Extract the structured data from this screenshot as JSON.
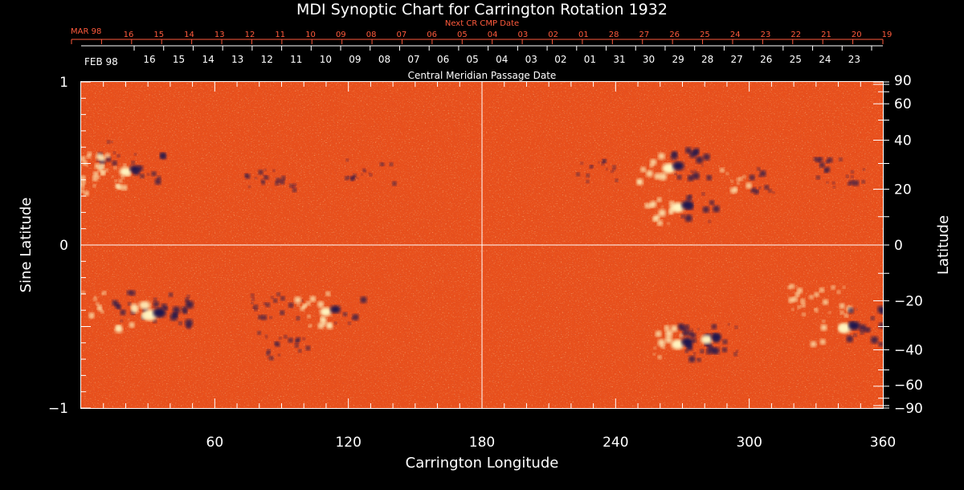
{
  "chart_data": {
    "type": "heatmap",
    "title": "MDI Synoptic Chart for Carrington Rotation 1932",
    "xlabel": "Carrington Longitude",
    "ylabel_left": "Sine Latitude",
    "ylabel_right": "Latitude",
    "top_label_red": "Next CR CMP Date",
    "top_label_white": "Central Meridian Passage Date",
    "month_red": "MAR 98",
    "month_white": "FEB 98",
    "xlim": [
      0,
      360
    ],
    "ylim": [
      -1,
      1
    ],
    "x_ticks": [
      60,
      120,
      180,
      240,
      300,
      360
    ],
    "x_minor_step": 10,
    "y_ticks_left": [
      {
        "value": 1,
        "label": "1"
      },
      {
        "value": 0,
        "label": "0"
      },
      {
        "value": -1,
        "label": "−1"
      }
    ],
    "y_ticks_right": [
      {
        "deg": 90,
        "label": "90"
      },
      {
        "deg": 60,
        "label": "60"
      },
      {
        "deg": 40,
        "label": "40"
      },
      {
        "deg": 20,
        "label": "20"
      },
      {
        "deg": 0,
        "label": "0"
      },
      {
        "deg": -20,
        "label": "−20"
      },
      {
        "deg": -40,
        "label": "−40"
      },
      {
        "deg": -60,
        "label": "−60"
      },
      {
        "deg": -90,
        "label": "−90"
      }
    ],
    "cmp_dates_white": [
      "16",
      "15",
      "14",
      "13",
      "12",
      "11",
      "10",
      "09",
      "08",
      "07",
      "06",
      "05",
      "04",
      "03",
      "02",
      "01",
      "31",
      "30",
      "29",
      "28",
      "27",
      "26",
      "25",
      "24",
      "23"
    ],
    "cmp_dates_red": [
      "16",
      "15",
      "14",
      "13",
      "12",
      "11",
      "10",
      "09",
      "08",
      "07",
      "06",
      "05",
      "04",
      "03",
      "02",
      "01",
      "28",
      "27",
      "26",
      "25",
      "24",
      "23",
      "22",
      "21",
      "20",
      "19"
    ],
    "colors": {
      "background_field": "#e8501c",
      "positive_polarity": "#fff4c0",
      "negative_polarity": "#1a1450",
      "axis": "#ffffff",
      "red_text": "#ff5a3c"
    },
    "active_regions": [
      {
        "lon": 5,
        "sinlat": 0.55,
        "polarity": "mixed",
        "strength": 0.6
      },
      {
        "lon": 22,
        "sinlat": 0.46,
        "polarity": "mixed",
        "strength": 0.8
      },
      {
        "lon": 9,
        "sinlat": 0.39,
        "polarity": "positive",
        "strength": 0.6
      },
      {
        "lon": 85,
        "sinlat": 0.38,
        "polarity": "negative",
        "strength": 0.5
      },
      {
        "lon": 130,
        "sinlat": 0.45,
        "polarity": "negative",
        "strength": 0.4
      },
      {
        "lon": 232,
        "sinlat": 0.45,
        "polarity": "negative",
        "strength": 0.3
      },
      {
        "lon": 266,
        "sinlat": 0.48,
        "polarity": "mixed",
        "strength": 0.9
      },
      {
        "lon": 270,
        "sinlat": 0.24,
        "polarity": "mixed",
        "strength": 0.9
      },
      {
        "lon": 300,
        "sinlat": 0.4,
        "polarity": "mixed",
        "strength": 0.7
      },
      {
        "lon": 340,
        "sinlat": 0.44,
        "polarity": "negative",
        "strength": 0.6
      },
      {
        "lon": 15,
        "sinlat": -0.37,
        "polarity": "mixed",
        "strength": 0.7
      },
      {
        "lon": 33,
        "sinlat": -0.42,
        "polarity": "mixed",
        "strength": 1.0
      },
      {
        "lon": 88,
        "sinlat": -0.38,
        "polarity": "negative",
        "strength": 0.5
      },
      {
        "lon": 90,
        "sinlat": -0.62,
        "polarity": "negative",
        "strength": 0.5
      },
      {
        "lon": 112,
        "sinlat": -0.4,
        "polarity": "mixed",
        "strength": 0.8
      },
      {
        "lon": 270,
        "sinlat": -0.6,
        "polarity": "mixed",
        "strength": 0.9
      },
      {
        "lon": 283,
        "sinlat": -0.57,
        "polarity": "negative",
        "strength": 0.8
      },
      {
        "lon": 345,
        "sinlat": -0.5,
        "polarity": "mixed",
        "strength": 0.9
      },
      {
        "lon": 330,
        "sinlat": -0.34,
        "polarity": "positive",
        "strength": 0.6
      }
    ]
  }
}
